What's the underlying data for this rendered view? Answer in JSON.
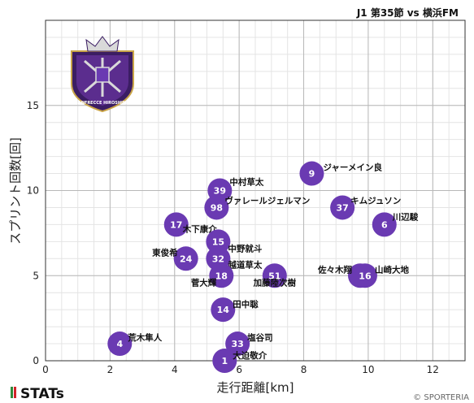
{
  "match_title": "J1 第35節 vs 横浜FM",
  "brand": "STATs",
  "copyright": "© SPORTERIA",
  "club_logo": {
    "text": "SANFRECCE HIROSHIMA",
    "colors": {
      "purple": "#5b2d8e",
      "dark": "#3b1d63",
      "silver": "#d9d9d9",
      "gold": "#c9a447"
    }
  },
  "colors": {
    "point": "#6a3ab2",
    "grid_major": "#b8b8b8",
    "grid_minor": "#e4e4e4",
    "brand_green": "#2f8a3b",
    "brand_red": "#d2232a"
  },
  "chart_data": {
    "type": "scatter",
    "xlabel": "走行距離[km]",
    "ylabel": "スプリント回数[回]",
    "xlim": [
      0,
      13
    ],
    "ylim": [
      0,
      20
    ],
    "xticks": [
      0,
      2,
      4,
      6,
      8,
      10,
      12
    ],
    "yticks": [
      0,
      5,
      10,
      15
    ],
    "grid": true,
    "points": [
      {
        "number": "9",
        "name": "ジャーメイン良",
        "x": 8.25,
        "y": 11
      },
      {
        "number": "39",
        "name": "中村草太",
        "x": 5.4,
        "y": 10
      },
      {
        "number": "98",
        "name": "ヴァレールジェルマン",
        "x": 5.3,
        "y": 9
      },
      {
        "number": "37",
        "name": "キムジュソン",
        "x": 9.2,
        "y": 9
      },
      {
        "number": "6",
        "name": "川辺駿",
        "x": 10.5,
        "y": 8
      },
      {
        "number": "17",
        "name": "木下康介",
        "x": 4.05,
        "y": 8
      },
      {
        "number": "15",
        "name": "中野就斗",
        "x": 5.35,
        "y": 7
      },
      {
        "number": "24",
        "name": "東俊希",
        "x": 4.35,
        "y": 6
      },
      {
        "number": "32",
        "name": "越道草太",
        "x": 5.35,
        "y": 6
      },
      {
        "number": "18",
        "name": "菅大輝",
        "x": 5.45,
        "y": 5
      },
      {
        "number": "51",
        "name": "加藤陸次樹",
        "x": 7.1,
        "y": 5
      },
      {
        "number": "19",
        "name": "佐々木翔",
        "x": 9.75,
        "y": 5
      },
      {
        "number": "16",
        "name": "山崎大地",
        "x": 9.9,
        "y": 5
      },
      {
        "number": "14",
        "name": "田中聡",
        "x": 5.5,
        "y": 3
      },
      {
        "number": "4",
        "name": "荒木隼人",
        "x": 2.3,
        "y": 1
      },
      {
        "number": "33",
        "name": "塩谷司",
        "x": 5.95,
        "y": 1
      },
      {
        "number": "1",
        "name": "大迫敬介",
        "x": 5.55,
        "y": 0
      }
    ]
  }
}
